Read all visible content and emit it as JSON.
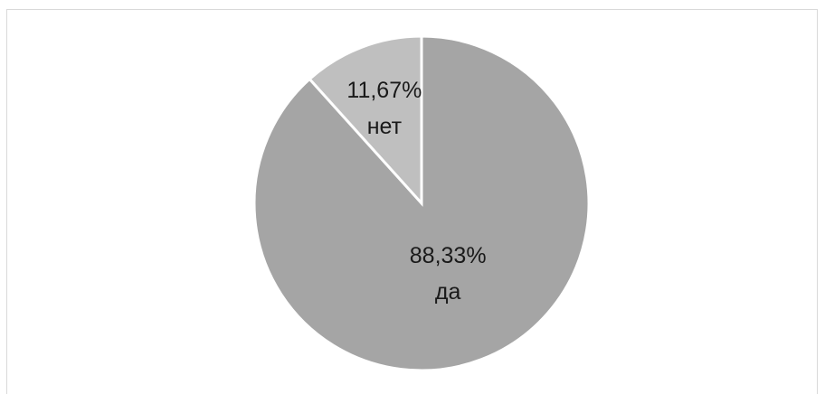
{
  "chart_data": {
    "type": "pie",
    "categories": [
      "нет",
      "да"
    ],
    "values": [
      11.67,
      88.33
    ],
    "value_labels": [
      "11,67%",
      "88,33%"
    ],
    "colors": [
      "#bfbfbf",
      "#a5a5a5"
    ],
    "start_angle_deg": 0,
    "direction": "counterclockwise",
    "legend": "none",
    "title": ""
  }
}
